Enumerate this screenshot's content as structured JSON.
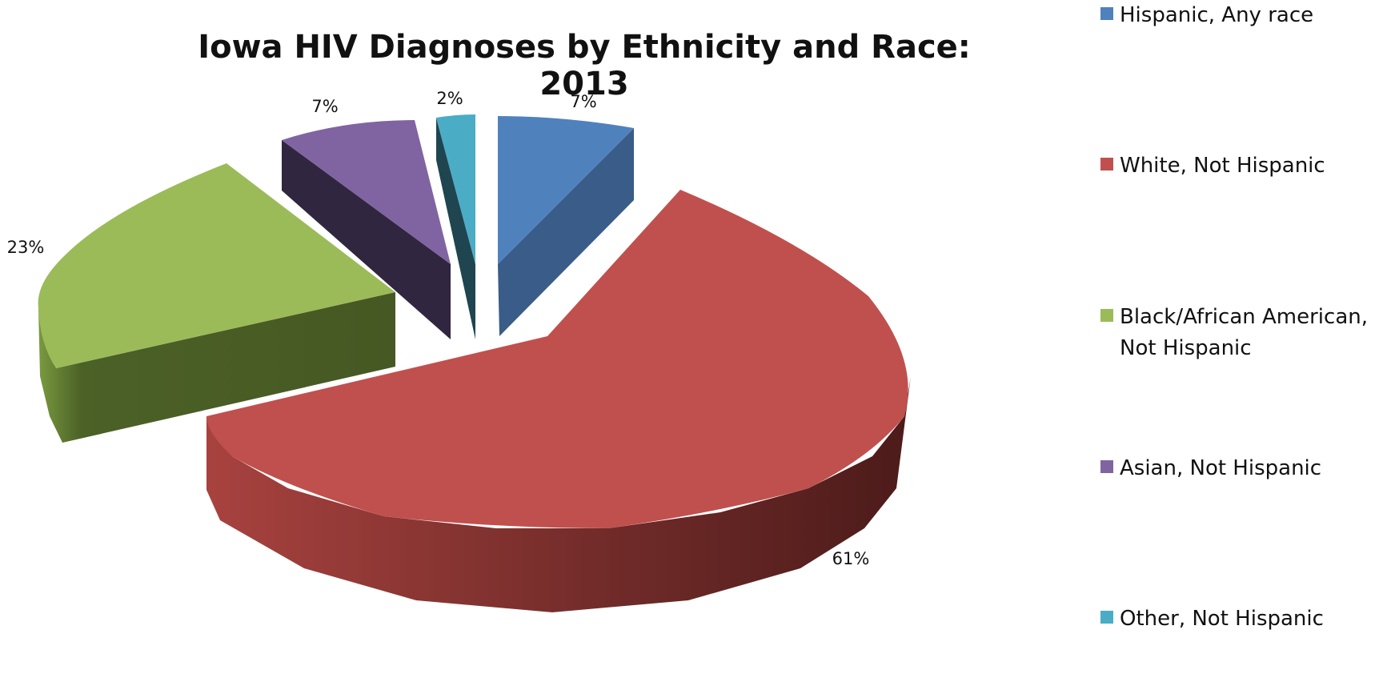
{
  "chart_data": {
    "type": "pie",
    "style": "3d-exploded",
    "title": "Iowa HIV Diagnoses by Ethnicity and Race: 2013",
    "legend_position": "right",
    "slices": [
      {
        "name": "Hispanic, Any race",
        "value": 7,
        "label": "7%",
        "color": "#4f81bd"
      },
      {
        "name": "White, Not Hispanic",
        "value": 61,
        "label": "61%",
        "color": "#c0504d"
      },
      {
        "name": "Black/African American, Not Hispanic",
        "value": 23,
        "label": "23%",
        "color": "#9bbb59"
      },
      {
        "name": "Asian, Not Hispanic",
        "value": 7,
        "label": "7%",
        "color": "#8064a2"
      },
      {
        "name": "Other, Not Hispanic",
        "value": 2,
        "label": "2%",
        "color": "#4bacc6"
      }
    ]
  }
}
